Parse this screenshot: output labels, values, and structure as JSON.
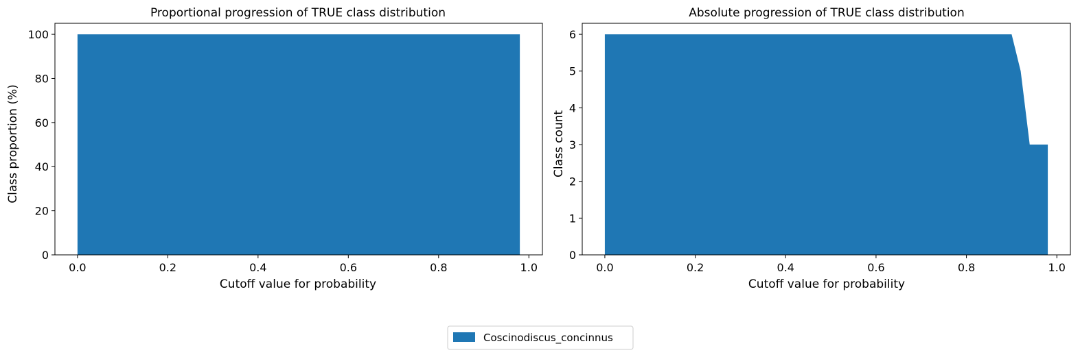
{
  "chart_data": [
    {
      "type": "area",
      "title": "Proportional progression of TRUE class distribution",
      "xlabel": "Cutoff value for probability",
      "ylabel": "Class proportion (%)",
      "xlim": [
        -0.05,
        1.03
      ],
      "ylim": [
        0,
        105
      ],
      "xticks": [
        0.0,
        0.2,
        0.4,
        0.6,
        0.8,
        1.0
      ],
      "xtick_labels": [
        "0.0",
        "0.2",
        "0.4",
        "0.6",
        "0.8",
        "1.0"
      ],
      "yticks": [
        0,
        20,
        40,
        60,
        80,
        100
      ],
      "ytick_labels": [
        "0",
        "20",
        "40",
        "60",
        "80",
        "100"
      ],
      "series": [
        {
          "name": "Coscinodiscus_concinnus",
          "x": [
            0.0,
            0.9,
            0.92,
            0.94,
            0.96,
            0.98
          ],
          "values": [
            100,
            100,
            100,
            100,
            100,
            100
          ]
        }
      ]
    },
    {
      "type": "area",
      "title": "Absolute progression of TRUE class distribution",
      "xlabel": "Cutoff value for probability",
      "ylabel": "Class count",
      "xlim": [
        -0.05,
        1.03
      ],
      "ylim": [
        0,
        6.3
      ],
      "xticks": [
        0.0,
        0.2,
        0.4,
        0.6,
        0.8,
        1.0
      ],
      "xtick_labels": [
        "0.0",
        "0.2",
        "0.4",
        "0.6",
        "0.8",
        "1.0"
      ],
      "yticks": [
        0,
        1,
        2,
        3,
        4,
        5,
        6
      ],
      "ytick_labels": [
        "0",
        "1",
        "2",
        "3",
        "4",
        "5",
        "6"
      ],
      "series": [
        {
          "name": "Coscinodiscus_concinnus",
          "x": [
            0.0,
            0.9,
            0.92,
            0.94,
            0.96,
            0.98
          ],
          "values": [
            6,
            6,
            5,
            3,
            3,
            3
          ]
        }
      ]
    }
  ],
  "legend": {
    "placement": "bottom-center",
    "entries": [
      {
        "label": "Coscinodiscus_concinnus",
        "color": "#1f77b4"
      }
    ]
  }
}
